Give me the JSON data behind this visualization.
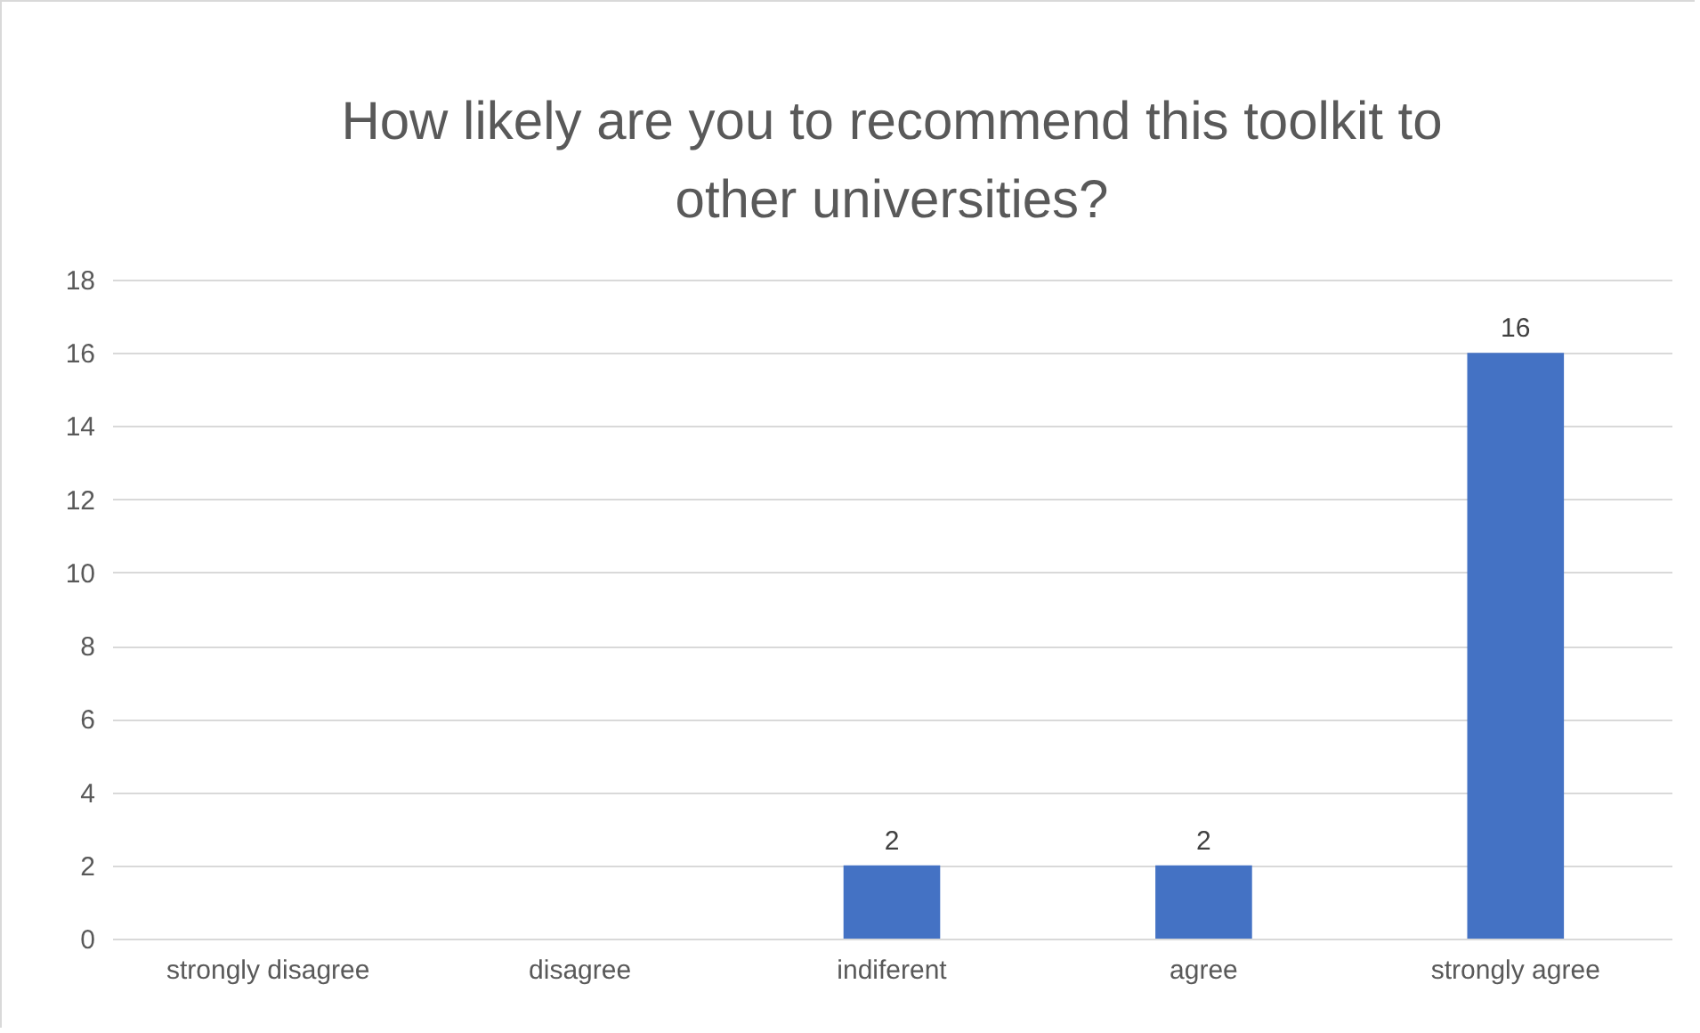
{
  "chart_data": {
    "type": "bar",
    "title": "How likely are you to recommend this toolkit to other universities?",
    "categories": [
      "strongly disagree",
      "disagree",
      "indiferent",
      "agree",
      "strongly agree"
    ],
    "values": [
      0,
      0,
      2,
      2,
      16
    ],
    "value_labels": [
      null,
      null,
      "2",
      "2",
      "16"
    ],
    "color": "#4472c4",
    "ylim": [
      0,
      18
    ],
    "yticks": [
      0,
      2,
      4,
      6,
      8,
      10,
      12,
      14,
      16,
      18
    ],
    "grid": "y"
  }
}
